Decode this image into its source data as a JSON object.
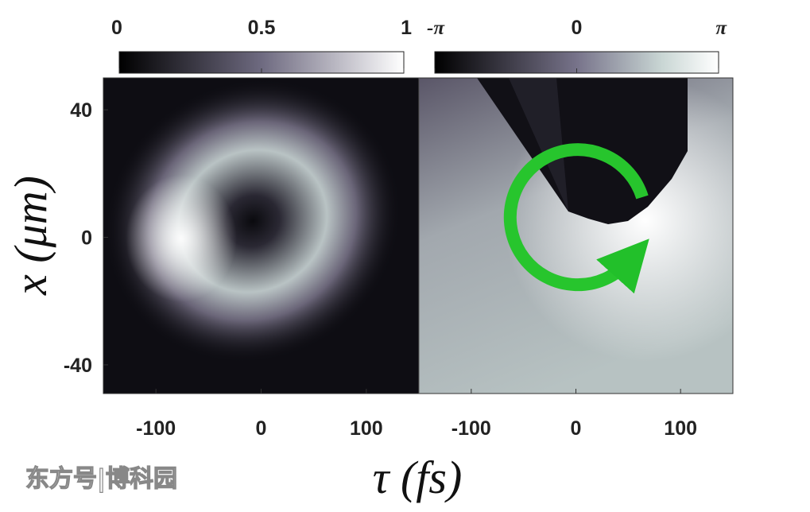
{
  "chart_data": [
    {
      "type": "heatmap",
      "colorbar": {
        "lim": [
          0,
          1
        ],
        "ticks": [
          0,
          0.5,
          1
        ]
      },
      "xlim": [
        -150,
        150
      ],
      "xticks": [
        -100,
        0,
        100
      ],
      "ylim": [
        -49,
        50
      ],
      "yticks": [
        -40,
        0,
        40
      ]
    },
    {
      "type": "heatmap",
      "colorbar": {
        "lim": [
          -3.14159,
          3.14159
        ],
        "ticks": [
          {
            "value": -3.14159,
            "label": "-π"
          },
          0,
          {
            "value": 3.14159,
            "label": "π"
          }
        ]
      },
      "xlim": [
        -150,
        150
      ],
      "xticks": [
        -100,
        0,
        100
      ],
      "ylim": [
        -49,
        50
      ]
    }
  ],
  "xlabel": "τ (fs)",
  "ylabel": "x (μm)",
  "watermark": "东方号|博科园"
}
